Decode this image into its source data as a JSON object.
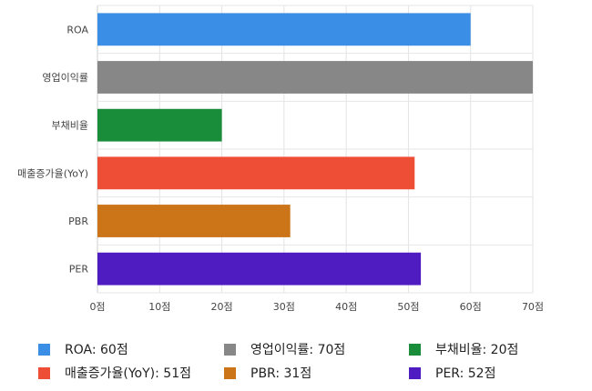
{
  "chart_data": {
    "type": "bar",
    "orientation": "horizontal",
    "categories": [
      "ROA",
      "영업이익률",
      "부채비율",
      "매출증가율(YoY)",
      "PBR",
      "PER"
    ],
    "values": [
      60,
      70,
      20,
      51,
      31,
      52
    ],
    "colors": [
      "#3a8ee6",
      "#878787",
      "#1a8d3a",
      "#ee4d36",
      "#cc7418",
      "#4e1cc0"
    ],
    "xlim": [
      0,
      70
    ],
    "xticks": [
      "0점",
      "10점",
      "20점",
      "30점",
      "40점",
      "50점",
      "60점",
      "70점"
    ],
    "grid": true,
    "legend_position": "bottom"
  },
  "legend": [
    {
      "label": "ROA: 60점",
      "color": "#3a8ee6"
    },
    {
      "label": "영업이익률: 70점",
      "color": "#878787"
    },
    {
      "label": "부채비율: 20점",
      "color": "#1a8d3a"
    },
    {
      "label": "매출증가율(YoY): 51점",
      "color": "#ee4d36"
    },
    {
      "label": "PBR: 31점",
      "color": "#cc7418"
    },
    {
      "label": "PER: 52점",
      "color": "#4e1cc0"
    }
  ]
}
